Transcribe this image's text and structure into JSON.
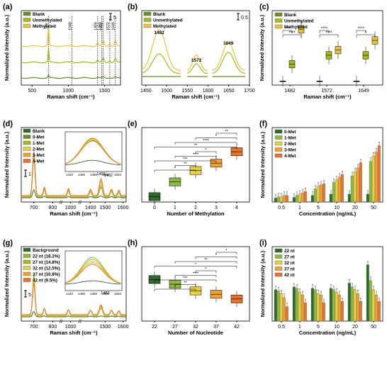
{
  "colors": {
    "blank": "#6b8e23",
    "unmethylated": "#a8b81a",
    "methylated": "#e8c33a",
    "dkgreen": "#2e6b2a",
    "ltgreen": "#8fb93c",
    "yellow": "#e8d23a",
    "orange": "#f0a030",
    "dkorange": "#e8742a"
  },
  "chart_data": [
    {
      "panel": "(a)",
      "type": "line",
      "legend": [
        "Blank",
        "Unmethylated",
        "Methylated"
      ],
      "scale_label": "5",
      "xlabel": "Raman shift (cm⁻¹)",
      "ylabel": "Normalized Intensity (a.u.)",
      "xticks": [
        "500",
        "1000",
        "1500"
      ],
      "xlim": [
        350,
        1720
      ],
      "peak_labels": [
        "726",
        "1048",
        "1404",
        "1462",
        "1482",
        "1572",
        "1649"
      ],
      "peak_positions": [
        726,
        1048,
        1404,
        1462,
        1482,
        1572,
        1649
      ]
    },
    {
      "panel": "(b)",
      "type": "line",
      "legend": [
        "Blank",
        "Unmethylated",
        "Methylated"
      ],
      "scale_label": "0.5",
      "xlabel": "Raman shift (cm⁻¹)",
      "xticks": [
        "1450",
        "1500",
        "1550",
        "1600",
        "1650",
        "1700"
      ],
      "xlim": [
        1440,
        1700
      ],
      "peak_labels": [
        "1482",
        "1572",
        "1649"
      ]
    },
    {
      "panel": "(c)",
      "type": "box",
      "legend": [
        "Blank",
        "Unmethylated",
        "Methylated"
      ],
      "xlabel": "Raman shift (cm⁻¹)",
      "ylabel": "Normalized Intensity (a.u.)",
      "categories": [
        "1482",
        "1572",
        "1649"
      ],
      "series": [
        {
          "name": "Blank",
          "medians": [
            0.05,
            0.05,
            0.05
          ]
        },
        {
          "name": "Unmethylated",
          "medians": [
            0.28,
            0.4,
            0.4
          ]
        },
        {
          "name": "Methylated",
          "medians": [
            0.75,
            0.47,
            0.6
          ]
        }
      ],
      "significance": [
        "****",
        "****",
        "****",
        "****",
        "*",
        "****"
      ]
    },
    {
      "panel": "(d)",
      "type": "line",
      "legend": [
        "Blank",
        "0-Met",
        "1-Met",
        "2-Met",
        "3-Met",
        "4-Met"
      ],
      "scale_label": "1",
      "xlabel": "Raman shift (cm⁻¹)",
      "ylabel": "Normalized Intensity (a.u.)",
      "xticks": [
        "700",
        "800",
        "1000",
        "1400",
        "1500",
        "1600"
      ],
      "peak_labels": [
        "1460",
        "1482"
      ],
      "inset_xticks": [
        "1440",
        "1460",
        "1480",
        "1500",
        "1520"
      ]
    },
    {
      "panel": "(e)",
      "type": "box",
      "xlabel": "Number of Methylation",
      "categories": [
        "0",
        "1",
        "2",
        "3",
        "4"
      ],
      "medians": [
        0.08,
        0.3,
        0.47,
        0.58,
        0.75
      ],
      "significance": [
        "**",
        "*",
        "****",
        "**",
        "*",
        "****",
        "***",
        "**",
        "*"
      ]
    },
    {
      "panel": "(f)",
      "type": "bar",
      "legend": [
        "0-Met",
        "1-Met",
        "2-Met",
        "3-Met",
        "4-Met"
      ],
      "xlabel": "Concentration (ng/mL)",
      "ylabel": "Normalized Intensity (a.u.)",
      "categories": [
        "0.5",
        "1",
        "5",
        "10",
        "20",
        "50"
      ],
      "series": [
        {
          "name": "0-Met",
          "values": [
            0.06,
            0.07,
            0.1,
            0.12,
            0.12,
            0.12
          ]
        },
        {
          "name": "1-Met",
          "values": [
            0.08,
            0.1,
            0.2,
            0.3,
            0.4,
            0.62
          ]
        },
        {
          "name": "2-Met",
          "values": [
            0.08,
            0.12,
            0.24,
            0.34,
            0.46,
            0.7
          ]
        },
        {
          "name": "3-Met",
          "values": [
            0.1,
            0.14,
            0.26,
            0.38,
            0.52,
            0.76
          ]
        },
        {
          "name": "4-Met",
          "values": [
            0.1,
            0.16,
            0.28,
            0.42,
            0.6,
            0.86
          ]
        }
      ],
      "ylim": [
        0,
        1
      ]
    },
    {
      "panel": "(g)",
      "type": "line",
      "legend": [
        "Background",
        "22 nt (18.2%)",
        "27 nt (14.8%)",
        "32 nt (12.5%)",
        "37 nt (10.8%)",
        "42 nt (9.5%)"
      ],
      "scale_label": "5",
      "xlabel": "Raman shift (cm⁻¹)",
      "ylabel": "Normalized Intensity (a.u.)",
      "xticks": [
        "700",
        "800",
        "1000",
        "1500",
        "1600"
      ],
      "peak_labels": [
        "1482"
      ],
      "inset_xticks": [
        "1440",
        "1460",
        "1480",
        "1500",
        "1520"
      ]
    },
    {
      "panel": "(h)",
      "type": "box",
      "xlabel": "Number of Nucleotide",
      "categories": [
        "22",
        "27",
        "32",
        "37",
        "42"
      ],
      "medians": [
        0.62,
        0.55,
        0.45,
        0.4,
        0.33
      ],
      "significance": [
        "*",
        "*",
        "**",
        "*",
        "*",
        "****",
        "***",
        "**",
        "*"
      ]
    },
    {
      "panel": "(i)",
      "type": "bar",
      "legend": [
        "22 nt",
        "27 nt",
        "32 nt",
        "37 nt",
        "42 nt"
      ],
      "xlabel": "Concentration (ng/mL)",
      "ylabel": "Normalized Intensity (a.u.)",
      "categories": [
        "0.5",
        "1",
        "5",
        "10",
        "20",
        "50"
      ],
      "series": [
        {
          "name": "22 nt",
          "values": [
            0.48,
            0.52,
            0.5,
            0.5,
            0.58,
            0.86
          ]
        },
        {
          "name": "27 nt",
          "values": [
            0.46,
            0.5,
            0.48,
            0.48,
            0.52,
            0.62
          ]
        },
        {
          "name": "32 nt",
          "values": [
            0.42,
            0.44,
            0.42,
            0.44,
            0.48,
            0.48
          ]
        },
        {
          "name": "37 nt",
          "values": [
            0.36,
            0.4,
            0.4,
            0.4,
            0.42,
            0.4
          ]
        },
        {
          "name": "42 nt",
          "values": [
            0.22,
            0.28,
            0.28,
            0.3,
            0.3,
            0.3
          ]
        }
      ],
      "ylim": [
        0,
        1
      ]
    }
  ]
}
